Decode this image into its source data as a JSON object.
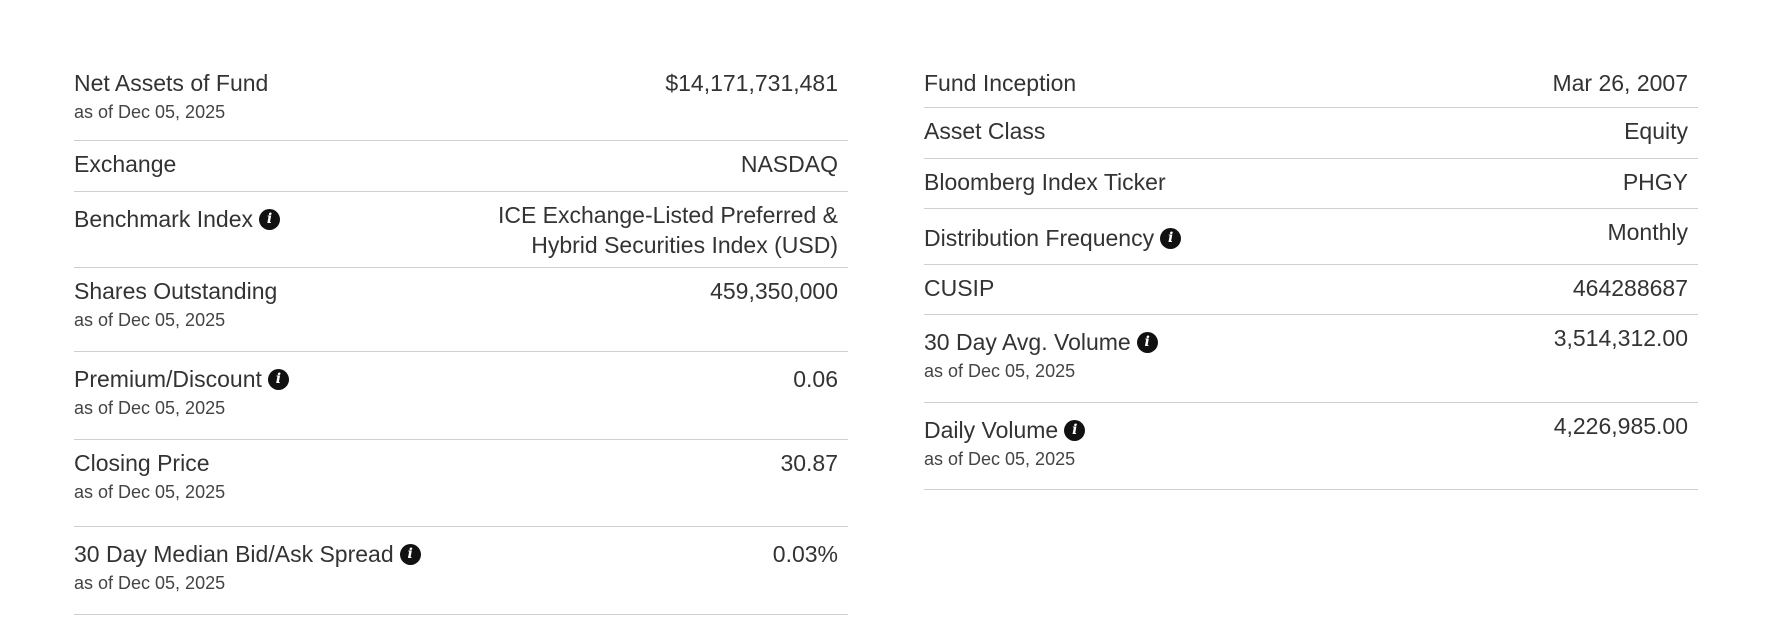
{
  "left": {
    "rows": [
      {
        "label": "Net Assets of Fund",
        "sub": "as of Dec 05, 2025",
        "value": "$14,171,731,481"
      },
      {
        "label": "Exchange",
        "value": "NASDAQ"
      },
      {
        "label": "Benchmark Index",
        "value_lines": [
          "ICE Exchange-Listed Preferred &",
          "Hybrid Securities Index (USD)"
        ]
      },
      {
        "label": "Shares Outstanding",
        "sub": "as of Dec 05, 2025",
        "value": "459,350,000"
      },
      {
        "label": "Premium/Discount",
        "sub": "as of Dec 05, 2025",
        "value": "0.06"
      },
      {
        "label": "Closing Price",
        "sub": "as of Dec 05, 2025",
        "value": "30.87"
      },
      {
        "label": "30 Day Median Bid/Ask Spread",
        "sub": "as of Dec 05, 2025",
        "value": "0.03%"
      }
    ]
  },
  "right": {
    "rows": [
      {
        "label": "Fund Inception",
        "value": "Mar 26, 2007"
      },
      {
        "label": "Asset Class",
        "value": "Equity"
      },
      {
        "label": "Bloomberg Index Ticker",
        "value": "PHGY"
      },
      {
        "label": "Distribution Frequency",
        "value": "Monthly"
      },
      {
        "label": "CUSIP",
        "value": "464288687"
      },
      {
        "label": "30 Day Avg. Volume",
        "sub": "as of Dec 05, 2025",
        "value": "3,514,312.00"
      },
      {
        "label": "Daily Volume",
        "sub": "as of Dec 05, 2025",
        "value": "4,226,985.00"
      }
    ]
  },
  "icons": {
    "info": "info-circle-icon",
    "glyph": "i"
  }
}
